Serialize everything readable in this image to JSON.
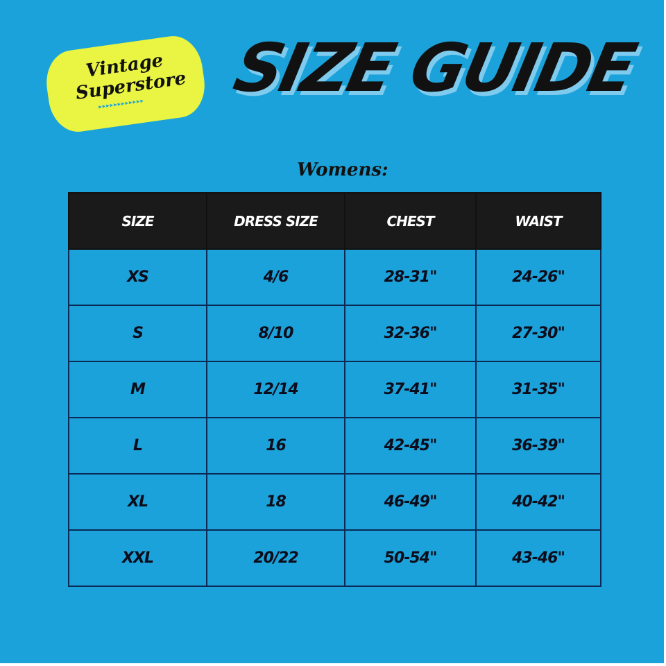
{
  "logo": {
    "line1": "Vintage",
    "line2": "Superstore",
    "arrows": "▸▸▸▸▸▸▸▸▸▸▸▸"
  },
  "title": "SIZE GUIDE",
  "subtitle": "Womens:",
  "colors": {
    "background": "#1ca2da",
    "header": "#1a1a1a",
    "logo": "#e9f542"
  },
  "table": {
    "headers": [
      "SIZE",
      "DRESS SIZE",
      "CHEST",
      "WAIST"
    ],
    "rows": [
      [
        "XS",
        "4/6",
        "28-31\"",
        "24-26\""
      ],
      [
        "S",
        "8/10",
        "32-36\"",
        "27-30\""
      ],
      [
        "M",
        "12/14",
        "37-41\"",
        "31-35\""
      ],
      [
        "L",
        "16",
        "42-45\"",
        "36-39\""
      ],
      [
        "XL",
        "18",
        "46-49\"",
        "40-42\""
      ],
      [
        "XXL",
        "20/22",
        "50-54\"",
        "43-46\""
      ]
    ]
  }
}
